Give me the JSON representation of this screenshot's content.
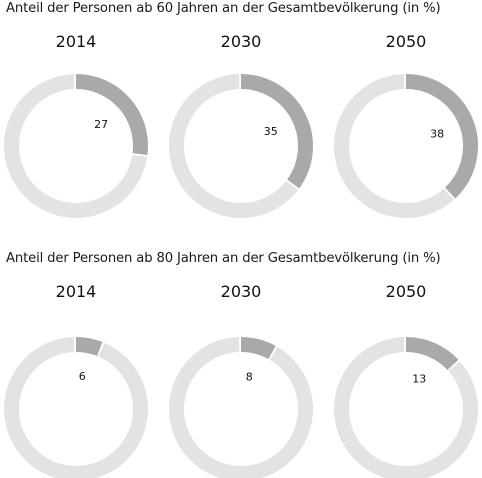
{
  "charts": [
    {
      "title": "Anteil der Personen ab 60 Jahren an der Gesamtbevölkerung (in %)"
    },
    {
      "title": "Anteil der Personen ab 80 Jahren an der Gesamtbevölkerung (in %)"
    }
  ],
  "colors": {
    "share": "#a9a9a9",
    "remainder": "#e3e3e3"
  },
  "chart_data": [
    {
      "type": "pie",
      "title": "Anteil der Personen ab 60 Jahren an der Gesamtbevölkerung (in %)",
      "categories": [
        "2014",
        "2030",
        "2050"
      ],
      "values": [
        27,
        35,
        38
      ],
      "unit": "%"
    },
    {
      "type": "pie",
      "title": "Anteil der Personen ab 80 Jahren an der Gesamtbevölkerung (in %)",
      "categories": [
        "2014",
        "2030",
        "2050"
      ],
      "values": [
        6,
        8,
        13
      ],
      "unit": "%"
    }
  ]
}
